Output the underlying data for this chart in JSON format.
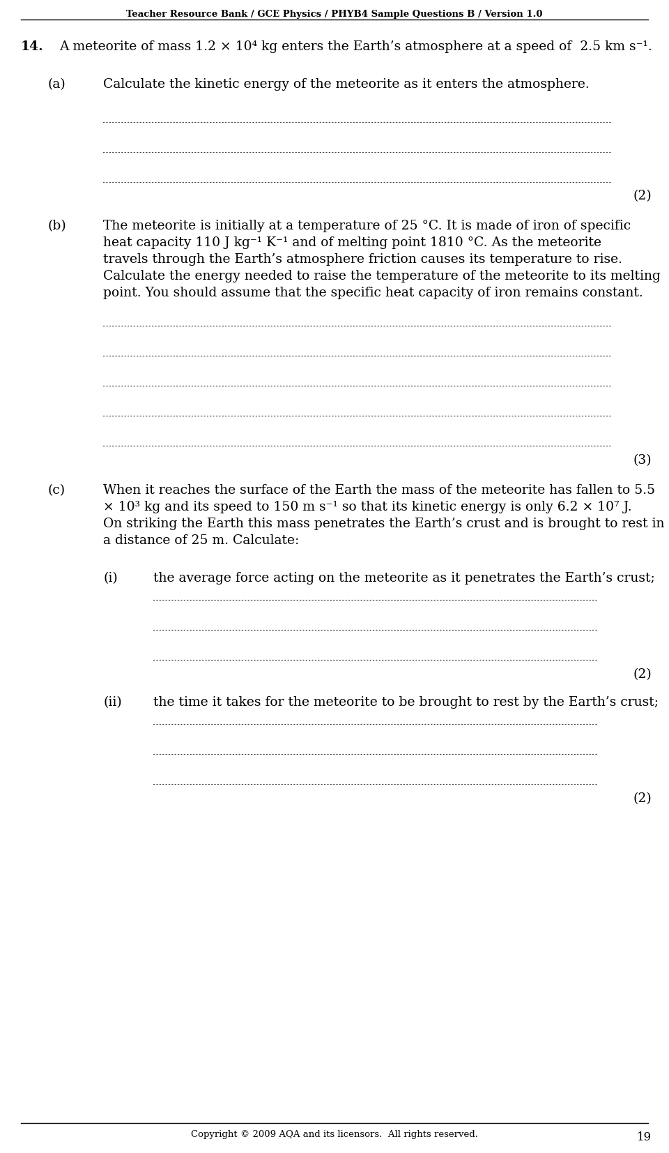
{
  "header": "Teacher Resource Bank / GCE Physics / PHYB4 Sample Questions B / Version 1.0",
  "footer_text": "Copyright © 2009 AQA and its licensors.  All rights reserved.",
  "page_number": "19",
  "question_number": "14.",
  "question_intro": "A meteorite of mass 1.2 × 10⁴ kg enters the Earth’s atmosphere at a speed of  2.5 km s⁻¹.",
  "part_a_label": "(a)",
  "part_a_text": "Calculate the kinetic energy of the meteorite as it enters the atmosphere.",
  "part_a_marks": "(2)",
  "part_b_label": "(b)",
  "part_b_lines": [
    "The meteorite is initially at a temperature of 25 °C. It is made of iron of specific",
    "heat capacity 110 J kg⁻¹ K⁻¹ and of melting point 1810 °C. As the meteorite",
    "travels through the Earth’s atmosphere friction causes its temperature to rise.",
    "Calculate the energy needed to raise the temperature of the meteorite to its melting",
    "point. You should assume that the specific heat capacity of iron remains constant."
  ],
  "part_b_marks": "(3)",
  "part_c_label": "(c)",
  "part_c_lines": [
    "When it reaches the surface of the Earth the mass of the meteorite has fallen to 5.5",
    "× 10³ kg and its speed to 150 m s⁻¹ so that its kinetic energy is only 6.2 × 10⁷ J.",
    "On striking the Earth this mass penetrates the Earth’s crust and is brought to rest in",
    "a distance of 25 m. Calculate:"
  ],
  "part_ci_label": "(i)",
  "part_ci_text": "the average force acting on the meteorite as it penetrates the Earth’s crust;",
  "part_ci_marks": "(2)",
  "part_cii_label": "(ii)",
  "part_cii_text": "the time it takes for the meteorite to be brought to rest by the Earth’s crust;",
  "part_cii_marks": "(2)",
  "bg_color": "#ffffff",
  "text_color": "#000000"
}
